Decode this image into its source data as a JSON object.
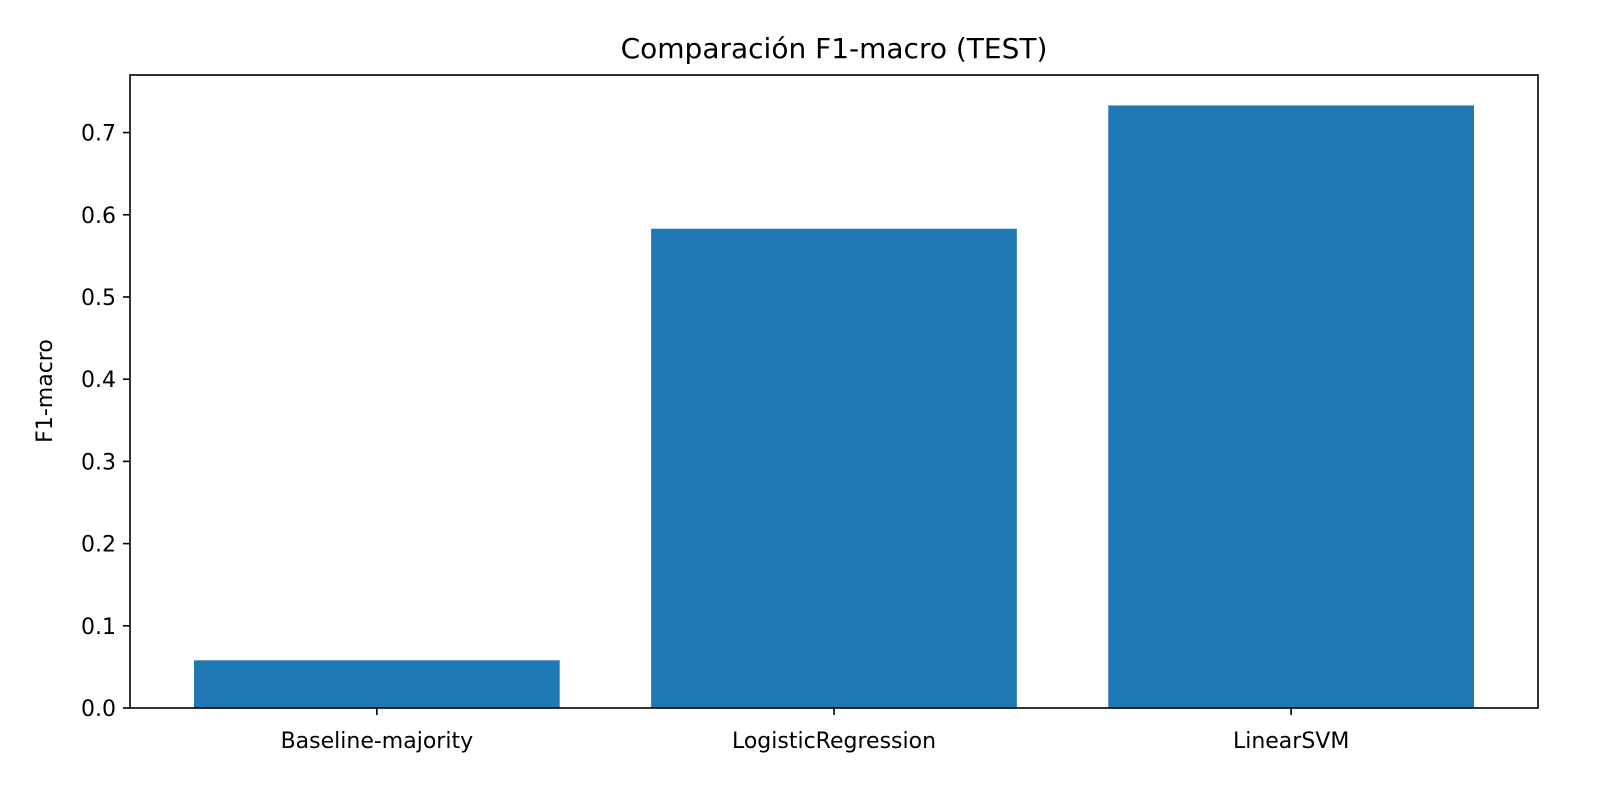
{
  "colors": {
    "bar": "#1f77b4",
    "axis": "#000000",
    "background": "#ffffff"
  },
  "chart_data": {
    "type": "bar",
    "title": "Comparación F1-macro (TEST)",
    "xlabel": "",
    "ylabel": "F1-macro",
    "categories": [
      "Baseline-majority",
      "LogisticRegression",
      "LinearSVM"
    ],
    "values": [
      0.058,
      0.583,
      0.733
    ],
    "ylim": [
      0,
      0.77
    ],
    "yticks": [
      0.0,
      0.1,
      0.2,
      0.3,
      0.4,
      0.5,
      0.6,
      0.7
    ],
    "ytick_labels": [
      "0.0",
      "0.1",
      "0.2",
      "0.3",
      "0.4",
      "0.5",
      "0.6",
      "0.7"
    ],
    "grid": false,
    "legend": "none"
  }
}
